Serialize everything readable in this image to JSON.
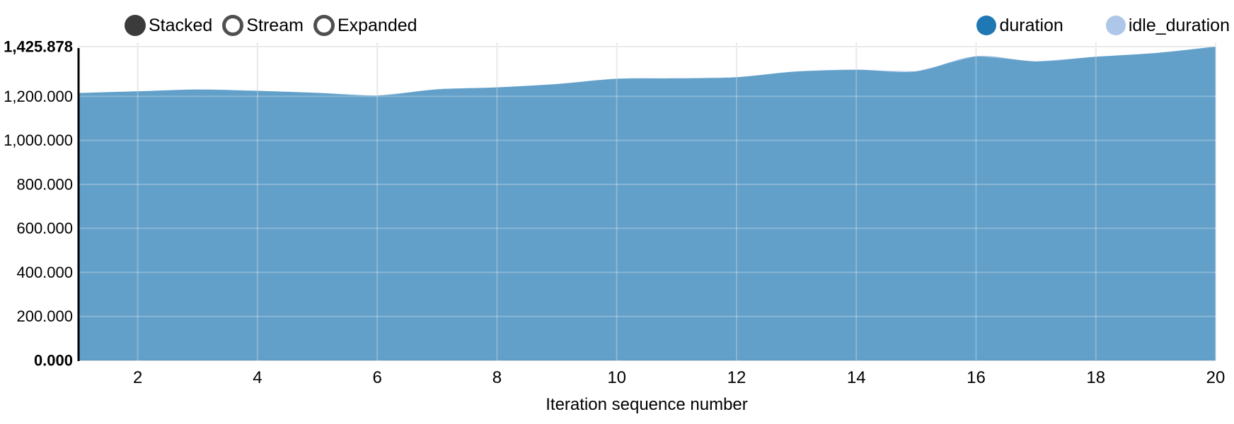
{
  "header": {
    "controls": [
      {
        "label": "Stacked",
        "active": true
      },
      {
        "label": "Stream",
        "active": false
      },
      {
        "label": "Expanded",
        "active": false
      }
    ],
    "legend": [
      {
        "label": "duration",
        "color": "#1f77b4"
      },
      {
        "label": "idle_duration",
        "color": "#aec7e8"
      }
    ]
  },
  "chart_data": {
    "type": "area",
    "mode": "stacked",
    "title": "",
    "xlabel": "Iteration sequence number",
    "ylabel": "",
    "grid": true,
    "legend_position": "top-right",
    "x_range": [
      1,
      20
    ],
    "y_range": [
      0,
      1425.878
    ],
    "x": [
      1,
      2,
      3,
      4,
      5,
      6,
      7,
      8,
      9,
      10,
      11,
      12,
      13,
      14,
      15,
      16,
      17,
      18,
      19,
      20
    ],
    "series": [
      {
        "name": "duration",
        "color": "#1f77b4",
        "fill_opacity": 0.7,
        "values": [
          1215,
          1223,
          1231,
          1225,
          1216,
          1204,
          1232,
          1241,
          1256,
          1280,
          1282,
          1287,
          1313,
          1321,
          1314,
          1382,
          1359,
          1380,
          1397,
          1425.878
        ]
      },
      {
        "name": "idle_duration",
        "color": "#aec7e8",
        "fill_opacity": 0.7,
        "values": [
          0,
          0,
          0,
          0,
          0,
          0,
          0,
          0,
          0,
          0,
          0,
          0,
          0,
          0,
          0,
          0,
          0,
          0,
          0,
          0
        ]
      }
    ],
    "yticks": [
      {
        "value": 0,
        "label": "0.000",
        "bold": true
      },
      {
        "value": 200,
        "label": "200.000",
        "bold": false
      },
      {
        "value": 400,
        "label": "400.000",
        "bold": false
      },
      {
        "value": 600,
        "label": "600.000",
        "bold": false
      },
      {
        "value": 800,
        "label": "800.000",
        "bold": false
      },
      {
        "value": 1000,
        "label": "1,000.000",
        "bold": false
      },
      {
        "value": 1200,
        "label": "1,200.000",
        "bold": false
      },
      {
        "value": 1425.878,
        "label": "1,425.878",
        "bold": true
      }
    ],
    "xticks": [
      {
        "value": 2,
        "label": "2"
      },
      {
        "value": 4,
        "label": "4"
      },
      {
        "value": 6,
        "label": "6"
      },
      {
        "value": 8,
        "label": "8"
      },
      {
        "value": 10,
        "label": "10"
      },
      {
        "value": 12,
        "label": "12"
      },
      {
        "value": 14,
        "label": "14"
      },
      {
        "value": 16,
        "label": "16"
      },
      {
        "value": 18,
        "label": "18"
      },
      {
        "value": 20,
        "label": "20"
      }
    ]
  },
  "colors": {
    "grid": "#e1e1e1",
    "grid_overlay": "rgba(255,255,255,0.3)",
    "axis_line": "#000000",
    "control_active": "#3b3b3b",
    "control_ring": "#4f4f4f"
  }
}
